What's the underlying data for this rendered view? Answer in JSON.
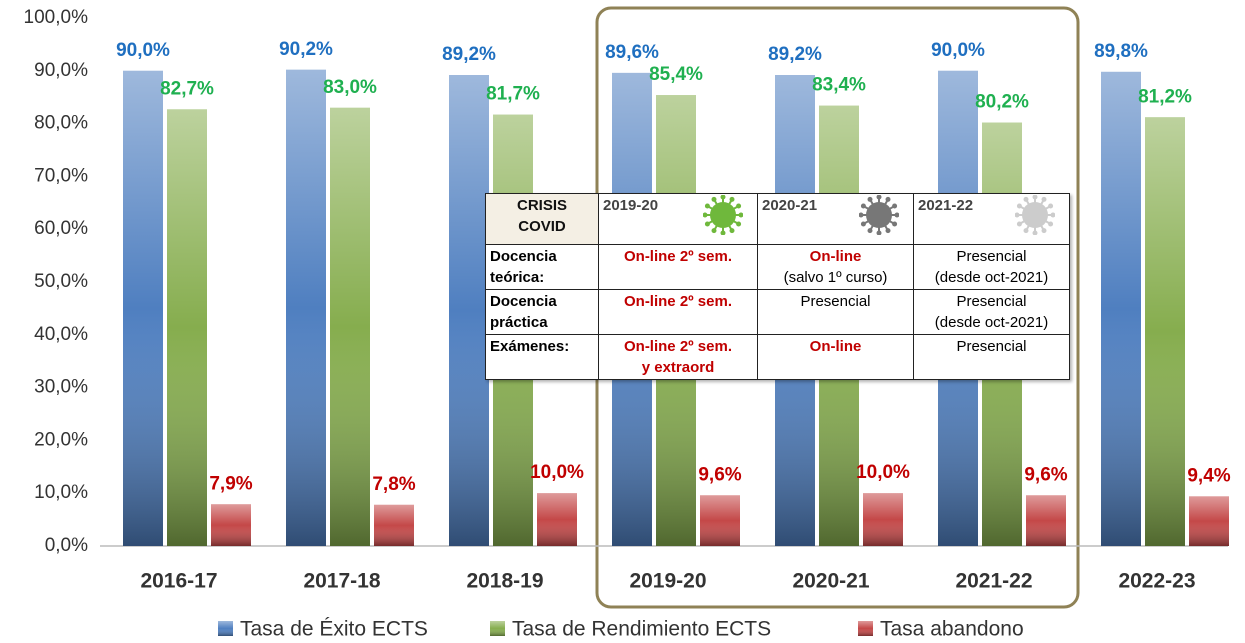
{
  "chart_data": {
    "type": "bar",
    "categories": [
      "2016-17",
      "2017-18",
      "2018-19",
      "2019-20",
      "2020-21",
      "2021-22",
      "2022-23"
    ],
    "series": [
      {
        "name": "Tasa de Éxito ECTS",
        "color": "#4f7fc0",
        "label_color": "#1f6fc0",
        "values": [
          90.0,
          90.2,
          89.2,
          89.6,
          89.2,
          90.0,
          89.8
        ],
        "value_labels": [
          "90,0%",
          "90,2%",
          "89,2%",
          "89,6%",
          "89,2%",
          "90,0%",
          "89,8%"
        ]
      },
      {
        "name": "Tasa de Rendimiento ECTS",
        "color": "#86ad4e",
        "label_color": "#1fb050",
        "values": [
          82.7,
          83.0,
          81.7,
          85.4,
          83.4,
          80.2,
          81.2
        ],
        "value_labels": [
          "82,7%",
          "83,0%",
          "81,7%",
          "85,4%",
          "83,4%",
          "80,2%",
          "81,2%"
        ]
      },
      {
        "name": "Tasa abandono",
        "color": "#c44848",
        "label_color": "#c00000",
        "values": [
          7.9,
          7.8,
          10.0,
          9.6,
          10.0,
          9.6,
          9.4
        ],
        "value_labels": [
          "7,9%",
          "7,8%",
          "10,0%",
          "9,6%",
          "10,0%",
          "9,6%",
          "9,4%"
        ]
      }
    ],
    "ylim": [
      0,
      100
    ],
    "yticks": [
      {
        "value": 0,
        "label": "0,0%"
      },
      {
        "value": 10,
        "label": "10,0%"
      },
      {
        "value": 20,
        "label": "20,0%"
      },
      {
        "value": 30,
        "label": "30,0%"
      },
      {
        "value": 40,
        "label": "40,0%"
      },
      {
        "value": 50,
        "label": "50,0%"
      },
      {
        "value": 60,
        "label": "60,0%"
      },
      {
        "value": 70,
        "label": "70,0%"
      },
      {
        "value": 80,
        "label": "80,0%"
      },
      {
        "value": 90,
        "label": "90,0%"
      },
      {
        "value": 100,
        "label": "100,0%"
      }
    ],
    "grid": false,
    "legend": "bottom"
  },
  "covid_table": {
    "header": [
      {
        "lines": [
          "CRISIS",
          "COVID"
        ]
      },
      {
        "lines": [
          "2019-20"
        ]
      },
      {
        "lines": [
          "2020-21"
        ]
      },
      {
        "lines": [
          "2021-22"
        ]
      }
    ],
    "rows": [
      [
        {
          "lines": [
            "Docencia",
            "teórica:"
          ]
        },
        {
          "lines": [
            "On-line 2º sem."
          ],
          "red": [
            true
          ]
        },
        {
          "lines": [
            "On-line",
            "(salvo 1º curso)"
          ],
          "red": [
            true,
            false
          ]
        },
        {
          "lines": [
            "Presencial",
            "(desde oct-2021)"
          ]
        }
      ],
      [
        {
          "lines": [
            "Docencia",
            "práctica"
          ]
        },
        {
          "lines": [
            "On-line 2º sem."
          ],
          "red": [
            true
          ]
        },
        {
          "lines": [
            "Presencial"
          ]
        },
        {
          "lines": [
            "Presencial",
            "(desde oct-2021)"
          ]
        }
      ],
      [
        {
          "lines": [
            "Exámenes:"
          ]
        },
        {
          "lines": [
            "On-line 2º sem.",
            "y extraord"
          ],
          "red": [
            true,
            true
          ]
        },
        {
          "lines": [
            "On-line"
          ],
          "red": [
            true
          ]
        },
        {
          "lines": [
            "Presencial"
          ]
        }
      ]
    ]
  }
}
